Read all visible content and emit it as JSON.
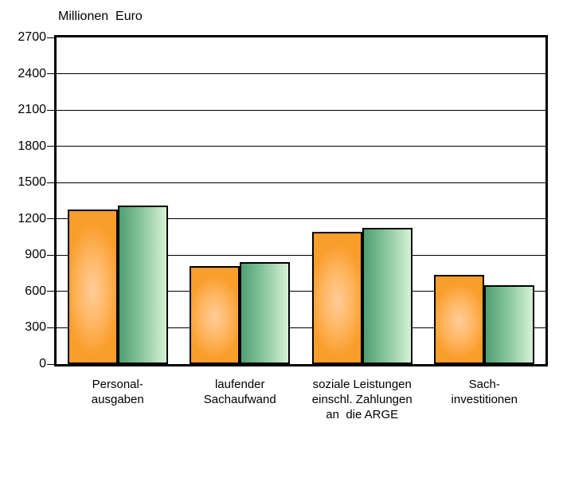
{
  "title": "Millionen  Euro",
  "chart_data": {
    "type": "bar",
    "title": "",
    "ylabel": "Millionen  Euro",
    "xlabel": "",
    "ylim": [
      0,
      2700
    ],
    "yticks": [
      0,
      300,
      600,
      900,
      1200,
      1500,
      1800,
      2100,
      2400,
      2700
    ],
    "grid": true,
    "legend_position": "none",
    "categories": [
      "Personal-\nausgaben",
      "laufender\nSachaufwand",
      "soziale Leistungen\neinschl. Zahlungen\nan  die ARGE",
      "Sach-\ninvestitionen"
    ],
    "series": [
      {
        "name": "orange-series",
        "values": [
          1280,
          810,
          1090,
          740
        ]
      },
      {
        "name": "green-series",
        "values": [
          1310,
          845,
          1125,
          655
        ]
      }
    ]
  },
  "colors": {
    "orange_edge": "#f99d2b",
    "orange_highlight": "#ffcd9a",
    "green_dark": "#4f9f72",
    "green_light": "#d7f1d5",
    "axis": "#000000",
    "background": "#ffffff"
  }
}
